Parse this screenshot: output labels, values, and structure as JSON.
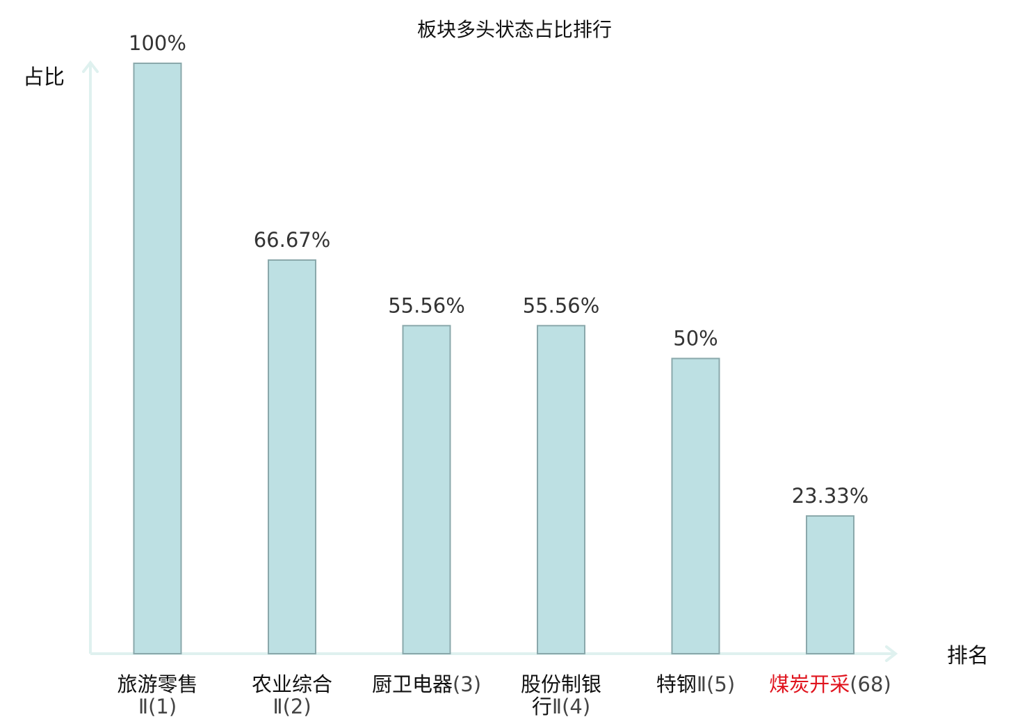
{
  "chart_data": {
    "type": "bar",
    "title": "板块多头状态占比排行",
    "ylabel": "占比",
    "xlabel": "排名",
    "ylim": [
      0,
      100
    ],
    "grid": false,
    "categories": [
      {
        "lines": [
          {
            "main": "旅游零售",
            "sub": ""
          },
          {
            "main": "",
            "sub": "Ⅱ(1)"
          }
        ],
        "highlight": false
      },
      {
        "lines": [
          {
            "main": "农业综合",
            "sub": ""
          },
          {
            "main": "",
            "sub": "Ⅱ(2)"
          }
        ],
        "highlight": false
      },
      {
        "lines": [
          {
            "main": "厨卫电器",
            "sub": "(3)"
          }
        ],
        "highlight": false
      },
      {
        "lines": [
          {
            "main": "股份制银",
            "sub": ""
          },
          {
            "main": "行",
            "sub": "Ⅱ(4)"
          }
        ],
        "highlight": false
      },
      {
        "lines": [
          {
            "main": "特钢",
            "sub": "Ⅱ(5)"
          }
        ],
        "highlight": false
      },
      {
        "lines": [
          {
            "main": "煤炭开采",
            "sub": "(68)"
          }
        ],
        "highlight": true
      }
    ],
    "values": [
      100,
      66.67,
      55.56,
      55.56,
      50,
      23.33
    ],
    "value_labels": [
      "100%",
      "66.67%",
      "55.56%",
      "55.56%",
      "50%",
      "23.33%"
    ],
    "colors": {
      "bar_fill": "#bde0e3",
      "bar_stroke": "#8aa8ab",
      "axis": "#dff1ef",
      "highlight_text": "#e0141e",
      "text": "#111111",
      "value_text": "#333333"
    }
  }
}
